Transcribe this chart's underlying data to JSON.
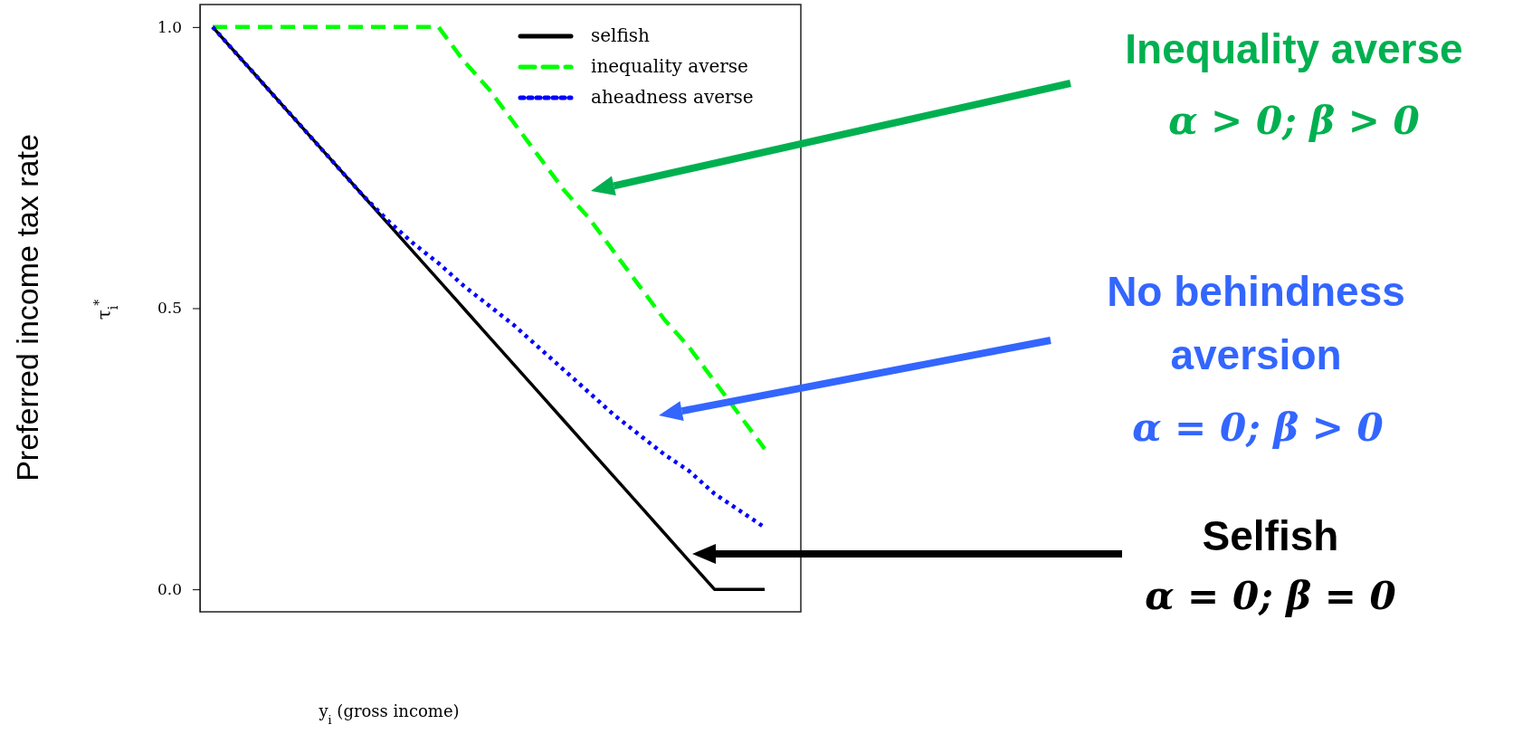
{
  "chart_data": {
    "type": "line",
    "ylabel": "Preferred income tax rate",
    "annotations": [
      "τ$_{i}$$^{*}$",
      "Inequality averse",
      "α > 0; β > 0",
      "No behindness aversion",
      "α = 0; β > 0",
      "Selfish",
      "α = 0; β = 0",
      "y$_{i}$ (gross income)"
    ],
    "categories": [
      null,
      null,
      null,
      null,
      null,
      null,
      null,
      null,
      null,
      null,
      null,
      null,
      null,
      null,
      null,
      null,
      null,
      null,
      null,
      null,
      null,
      null,
      null
    ],
    "series": [
      {
        "name": "selfish",
        "color": "#000000",
        "line_style": "solid",
        "values": [
          1,
          0.95,
          0.9,
          0.85,
          0.8,
          0.75,
          0.7,
          0.65,
          0.6,
          0.55,
          0.5,
          0.45,
          0.4,
          0.35,
          0.3,
          0.25,
          0.2,
          0.15,
          0.1,
          0.05,
          0,
          0,
          0
        ]
      },
      {
        "name": "inequality averse",
        "color": "#00ff00",
        "line_style": "dashed",
        "values": [
          1,
          1,
          1,
          1,
          1,
          1,
          1,
          1,
          1,
          1,
          0.94,
          0.89,
          0.83,
          0.77,
          0.71,
          0.66,
          0.6,
          0.54,
          0.48,
          0.43,
          0.37,
          0.31,
          0.25
        ]
      },
      {
        "name": "aheadness averse",
        "color": "#0000ff",
        "line_style": "dotted",
        "values": [
          1,
          0.95,
          0.9,
          0.85,
          0.8,
          0.75,
          0.7,
          0.655,
          0.615,
          0.58,
          0.54,
          0.505,
          0.47,
          0.43,
          0.39,
          0.35,
          0.31,
          0.275,
          0.24,
          0.21,
          0.17,
          0.14,
          0.11
        ]
      }
    ],
    "ylim": [
      -0.04,
      1.04
    ],
    "yticks": [
      {
        "value": 0,
        "label": "0.0"
      },
      {
        "value": 0.5,
        "label": "0.5"
      },
      {
        "value": 1,
        "label": "1.0"
      }
    ],
    "legend": "top right",
    "grid": false
  }
}
